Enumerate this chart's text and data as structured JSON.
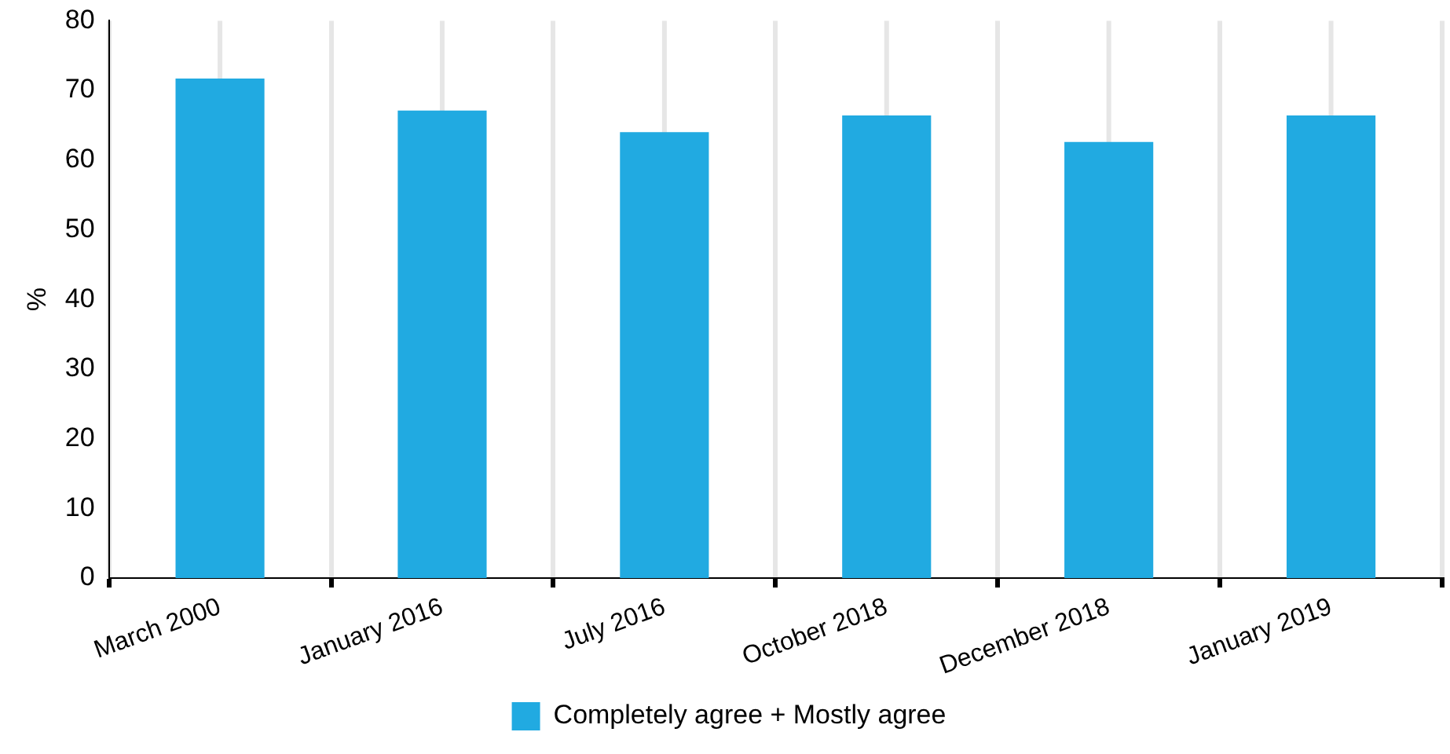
{
  "chart_data": {
    "type": "bar",
    "ylabel": "%",
    "categories": [
      "March 2000",
      "January 2016",
      "July 2016",
      "October 2018",
      "December 2018",
      "January 2019"
    ],
    "series": [
      {
        "name": "Completely agree + Mostly agree",
        "color": "#21aae1",
        "values": [
          71.7,
          67.1,
          64,
          66.4,
          62.6,
          66.4
        ]
      }
    ],
    "ylim": [
      0,
      80
    ],
    "yticks": [
      0,
      10,
      20,
      30,
      40,
      50,
      60,
      70,
      80
    ],
    "grid": "x",
    "legend": "bottom"
  }
}
